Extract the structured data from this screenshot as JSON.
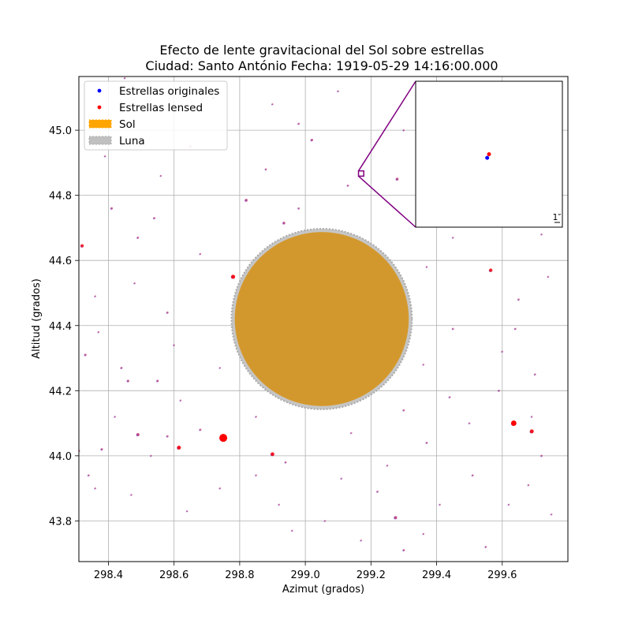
{
  "chart_data": {
    "type": "scatter",
    "title_line1": "Efecto de lente gravitacional del Sol sobre estrellas",
    "title_line2": "Ciudad: Santo António  Fecha: 1919-05-29 14:16:00.000",
    "xlabel": "Azimut (grados)",
    "ylabel": "Altitud (grados)",
    "xlim": [
      298.31,
      299.8
    ],
    "ylim": [
      43.675,
      45.165
    ],
    "xticks": [
      298.4,
      298.6,
      298.8,
      299.0,
      299.2,
      299.4,
      299.6
    ],
    "xtick_labels": [
      "298.4",
      "298.6",
      "298.8",
      "299.0",
      "299.2",
      "299.4",
      "299.6"
    ],
    "yticks": [
      43.8,
      44.0,
      44.2,
      44.4,
      44.6,
      44.8,
      45.0
    ],
    "ytick_labels": [
      "43.8",
      "44.0",
      "44.2",
      "44.4",
      "44.6",
      "44.8",
      "45.0"
    ],
    "grid": true,
    "legend_position": "upper-left",
    "legend": [
      {
        "label": "Estrellas originales",
        "kind": "dot",
        "color": "#0000ff"
      },
      {
        "label": "Estrellas lensed",
        "kind": "dot",
        "color": "#ff0000"
      },
      {
        "label": "Sol",
        "kind": "patch",
        "color": "#ffa500"
      },
      {
        "label": "Luna",
        "kind": "patch",
        "color": "#c0c0c0"
      }
    ],
    "sun": {
      "center": [
        299.05,
        44.42
      ],
      "radius": 0.265,
      "color": "#ffa500"
    },
    "moon": {
      "center": [
        299.05,
        44.42
      ],
      "radius": 0.275,
      "color": "#c0c0c0"
    },
    "inset": {
      "zoom_center": [
        299.17,
        44.867
      ],
      "zoom_halfwidth": 0.008,
      "scale_label": "1″",
      "points_original": [
        [
          299.1698,
          44.8666
        ]
      ],
      "points_lensed": [
        [
          299.17,
          44.867
        ]
      ]
    },
    "stars_lensed": [
      [
        298.75,
        44.055,
        5
      ],
      [
        299.635,
        44.1,
        3.4
      ],
      [
        299.69,
        44.075,
        2.5
      ],
      [
        298.78,
        44.55,
        2.6
      ],
      [
        298.615,
        44.025,
        2.5
      ],
      [
        298.9,
        44.005,
        2.4
      ],
      [
        299.565,
        44.57,
        2.2
      ],
      [
        298.32,
        44.645,
        2.1
      ],
      [
        299.275,
        43.81,
        2.0
      ],
      [
        298.49,
        44.065,
        2.0
      ],
      [
        299.28,
        44.85,
        1.8
      ],
      [
        298.82,
        44.785,
        1.8
      ],
      [
        298.935,
        44.715,
        1.7
      ],
      [
        299.02,
        44.97,
        1.6
      ],
      [
        298.79,
        44.42,
        1.5
      ],
      [
        299.545,
        44.805,
        1.5
      ],
      [
        299.52,
        44.91,
        1.5
      ],
      [
        299.66,
        44.74,
        1.6
      ],
      [
        298.46,
        44.23,
        1.6
      ],
      [
        298.33,
        44.31,
        1.5
      ],
      [
        298.55,
        44.23,
        1.5
      ],
      [
        298.41,
        44.76,
        1.5
      ],
      [
        298.31,
        44.015,
        1.5
      ],
      [
        298.38,
        44.02,
        1.5
      ],
      [
        298.58,
        44.06,
        1.4
      ],
      [
        298.44,
        44.27,
        1.4
      ],
      [
        298.68,
        44.08,
        1.4
      ],
      [
        298.54,
        44.73,
        1.4
      ],
      [
        298.49,
        44.67,
        1.4
      ],
      [
        298.58,
        44.44,
        1.4
      ],
      [
        299.3,
        43.71,
        1.4
      ],
      [
        298.94,
        43.98,
        1.3
      ],
      [
        299.22,
        43.89,
        1.3
      ],
      [
        299.3,
        44.14,
        1.3
      ],
      [
        299.44,
        44.18,
        1.3
      ],
      [
        299.51,
        43.94,
        1.3
      ],
      [
        299.45,
        44.39,
        1.3
      ],
      [
        299.37,
        44.04,
        1.3
      ],
      [
        298.98,
        44.76,
        1.3
      ],
      [
        299.13,
        44.83,
        1.3
      ],
      [
        298.88,
        44.88,
        1.3
      ],
      [
        298.98,
        45.02,
        1.3
      ],
      [
        299.64,
        44.39,
        1.3
      ],
      [
        299.59,
        44.2,
        1.3
      ],
      [
        299.7,
        44.25,
        1.3
      ],
      [
        299.72,
        44.0,
        1.3
      ],
      [
        299.65,
        44.48,
        1.3
      ],
      [
        299.55,
        43.72,
        1.3
      ],
      [
        298.34,
        43.94,
        1.3
      ],
      [
        298.36,
        43.9,
        1.2
      ],
      [
        298.47,
        43.88,
        1.2
      ],
      [
        298.53,
        44.0,
        1.2
      ],
      [
        298.64,
        43.83,
        1.2
      ],
      [
        298.74,
        43.9,
        1.2
      ],
      [
        298.85,
        43.94,
        1.2
      ],
      [
        298.96,
        43.77,
        1.2
      ],
      [
        299.06,
        43.8,
        1.2
      ],
      [
        299.17,
        43.74,
        1.2
      ],
      [
        299.25,
        43.97,
        1.2
      ],
      [
        299.41,
        43.85,
        1.2
      ],
      [
        299.62,
        43.85,
        1.2
      ],
      [
        299.75,
        43.82,
        1.2
      ],
      [
        298.42,
        44.12,
        1.2
      ],
      [
        298.62,
        44.17,
        1.2
      ],
      [
        298.74,
        44.27,
        1.2
      ],
      [
        298.36,
        44.49,
        1.2
      ],
      [
        298.48,
        44.53,
        1.2
      ],
      [
        298.68,
        44.62,
        1.2
      ],
      [
        298.56,
        44.86,
        1.2
      ],
      [
        298.39,
        44.92,
        1.2
      ],
      [
        298.65,
        44.95,
        1.2
      ],
      [
        298.72,
        45.1,
        1.2
      ],
      [
        298.45,
        45.16,
        1.2
      ],
      [
        298.9,
        45.08,
        1.2
      ],
      [
        299.1,
        45.12,
        1.2
      ],
      [
        299.3,
        45.0,
        1.2
      ],
      [
        299.45,
        44.67,
        1.2
      ],
      [
        299.37,
        44.58,
        1.2
      ],
      [
        299.6,
        44.32,
        1.2
      ],
      [
        299.74,
        44.55,
        1.2
      ],
      [
        299.72,
        44.68,
        1.2
      ],
      [
        299.78,
        44.9,
        1.2
      ],
      [
        299.66,
        44.96,
        1.2
      ],
      [
        299.36,
        44.28,
        1.2
      ],
      [
        299.25,
        44.6,
        1.2
      ],
      [
        298.84,
        44.27,
        1.2
      ],
      [
        298.85,
        44.12,
        1.2
      ],
      [
        299.14,
        44.07,
        1.2
      ],
      [
        299.5,
        44.1,
        1.2
      ],
      [
        298.6,
        44.34,
        1.2
      ],
      [
        298.37,
        44.38,
        1.2
      ],
      [
        299.69,
        44.12,
        1.2
      ],
      [
        298.92,
        43.85,
        1.2
      ],
      [
        299.11,
        43.93,
        1.2
      ],
      [
        299.36,
        43.76,
        1.2
      ],
      [
        299.68,
        43.91,
        1.2
      ]
    ]
  }
}
